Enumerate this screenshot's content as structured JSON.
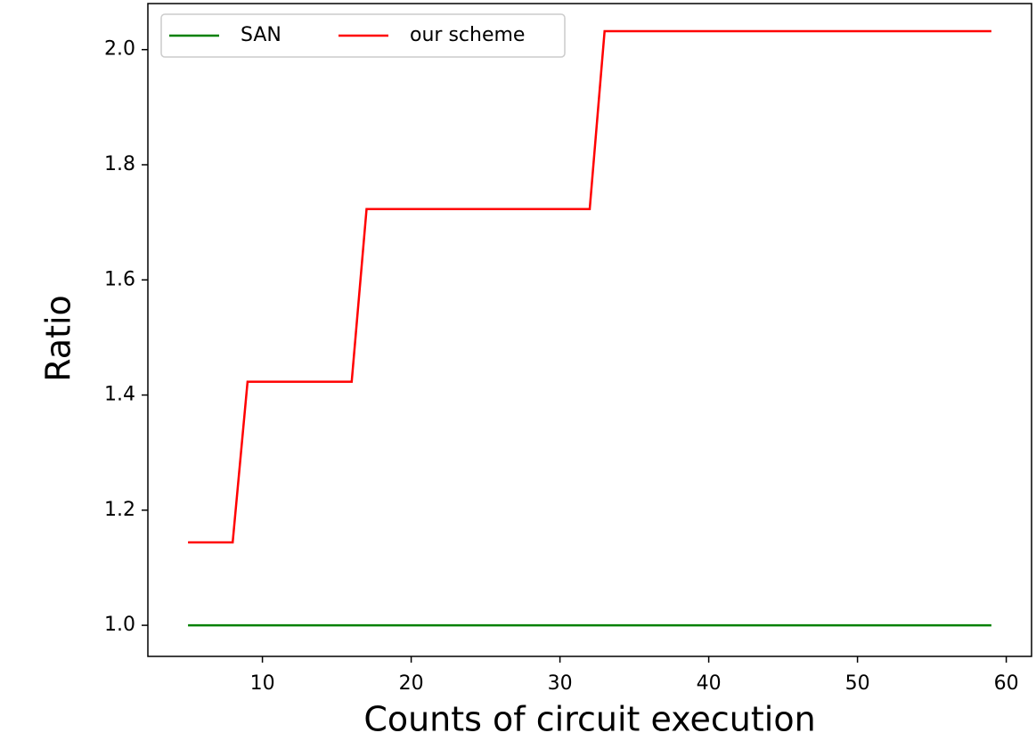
{
  "chart_data": {
    "type": "line",
    "xlabel": "Counts of circuit execution",
    "ylabel": "Ratio",
    "series": [
      {
        "name": "SAN",
        "color": "#008000",
        "x": [
          5,
          59
        ],
        "values": [
          1.0,
          1.0
        ]
      },
      {
        "name": "our scheme",
        "color": "#ff0000",
        "x": [
          5,
          8,
          9,
          16,
          17,
          32,
          33,
          59
        ],
        "values": [
          1.144,
          1.144,
          1.423,
          1.423,
          1.723,
          1.723,
          2.032,
          2.032
        ]
      }
    ],
    "xlim": [
      2.3,
      61.7
    ],
    "ylim": [
      0.946,
      2.08
    ],
    "xticks": [
      10,
      20,
      30,
      40,
      50,
      60
    ],
    "yticks": [
      {
        "value": 1,
        "label": "1.0"
      },
      1.2,
      1.4,
      1.6,
      1.8,
      {
        "value": 2,
        "label": "2.0"
      }
    ],
    "grid": false,
    "legend": "upper left"
  }
}
